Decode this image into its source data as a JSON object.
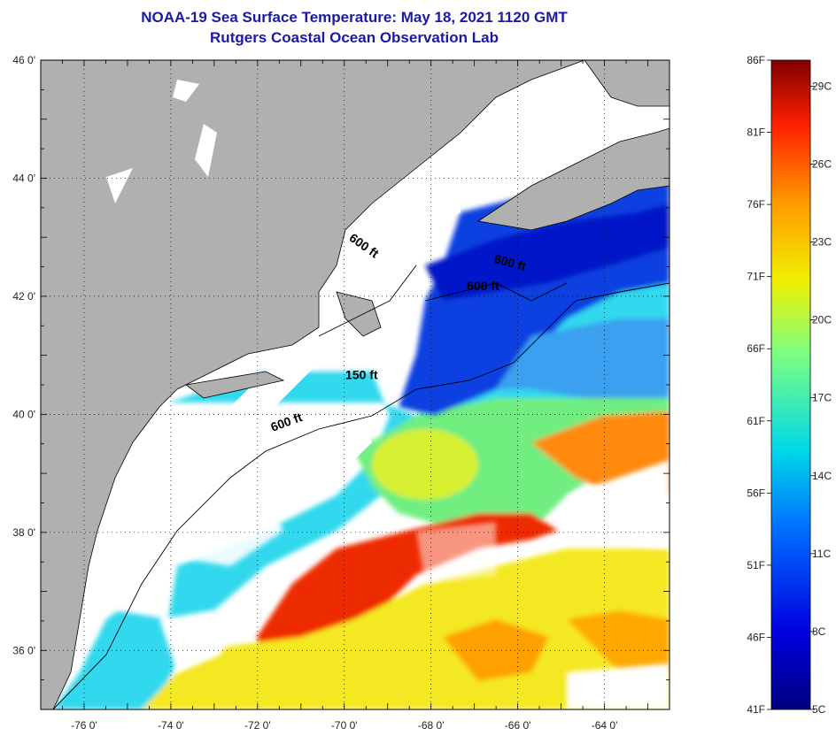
{
  "title": {
    "line1": "NOAA-19 Sea Surface Temperature:  May 18, 2021 1120 GMT",
    "line2": "Rutgers Coastal Ocean Observation Lab"
  },
  "colors": {
    "title": "#1a1aa6",
    "land": "#b0b0b0",
    "cloud": "#ffffff",
    "frame": "#000000"
  },
  "map": {
    "lat_range": [
      35,
      46
    ],
    "lon_range": [
      -77,
      -62.5
    ],
    "lat_ticks": [
      "46 0'",
      "44 0'",
      "42 0'",
      "40 0'",
      "38 0'",
      "36 0'"
    ],
    "lon_ticks": [
      "-76 0'",
      "-74 0'",
      "-72 0'",
      "-70 0'",
      "-68 0'",
      "-66 0'",
      "-64 0'"
    ],
    "contour_labels": [
      {
        "text": "600 ft",
        "lon": -69.6,
        "lat": 42.8
      },
      {
        "text": "600 ft",
        "lon": -66.2,
        "lat": 42.5
      },
      {
        "text": "600 ft",
        "lon": -66.8,
        "lat": 42.1
      },
      {
        "text": "150 ft",
        "lon": -69.6,
        "lat": 40.6
      },
      {
        "text": "600 ft",
        "lon": -71.3,
        "lat": 39.8
      }
    ]
  },
  "colorbar": {
    "min_label": "41F",
    "max_label": "86F",
    "fahrenheit": [
      "86F",
      "81F",
      "76F",
      "71F",
      "66F",
      "61F",
      "56F",
      "51F",
      "46F",
      "41F"
    ],
    "celsius": [
      "29C",
      "26C",
      "23C",
      "20C",
      "17C",
      "14C",
      "11C",
      "8C",
      "5C"
    ]
  }
}
